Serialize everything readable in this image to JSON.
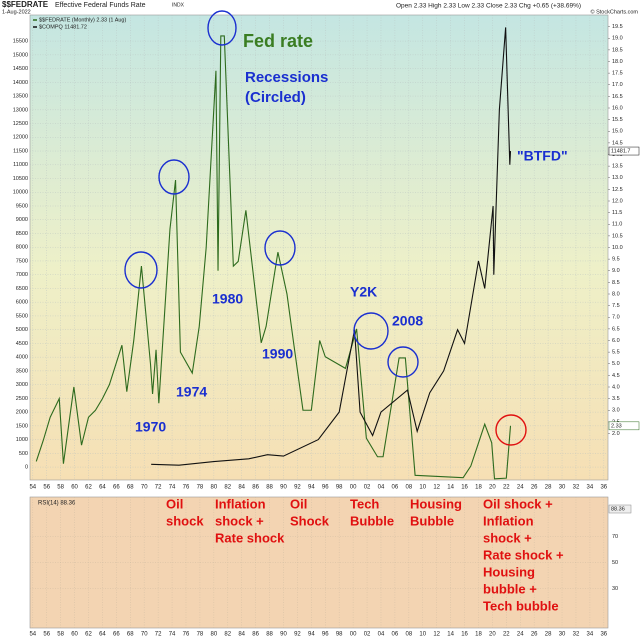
{
  "chart_data": {
    "type": "line",
    "title": "$$FEDRATE",
    "subtitle": "Effective Federal Funds Rate",
    "exchange": "INDX",
    "date": "1-Aug-2022",
    "quote": "Open 2.33  High 2.33  Low 2.33  Close 2.33  Chg +0.65 (+38.69%)",
    "credit": "© StockCharts.com",
    "xlim": [
      1953.6,
      2036.6
    ],
    "xticks": [
      {
        "value": 1954,
        "label": "54"
      },
      {
        "value": 1956,
        "label": "56"
      },
      {
        "value": 1958,
        "label": "58"
      },
      {
        "value": 1960,
        "label": "60"
      },
      {
        "value": 1962,
        "label": "62"
      },
      {
        "value": 1964,
        "label": "64"
      },
      {
        "value": 1966,
        "label": "66"
      },
      {
        "value": 1968,
        "label": "68"
      },
      {
        "value": 1970,
        "label": "70"
      },
      {
        "value": 1972,
        "label": "72"
      },
      {
        "value": 1974,
        "label": "74"
      },
      {
        "value": 1976,
        "label": "76"
      },
      {
        "value": 1978,
        "label": "78"
      },
      {
        "value": 1980,
        "label": "80"
      },
      {
        "value": 1982,
        "label": "82"
      },
      {
        "value": 1984,
        "label": "84"
      },
      {
        "value": 1986,
        "label": "86"
      },
      {
        "value": 1988,
        "label": "88"
      },
      {
        "value": 1990,
        "label": "90"
      },
      {
        "value": 1992,
        "label": "92"
      },
      {
        "value": 1994,
        "label": "94"
      },
      {
        "value": 1996,
        "label": "96"
      },
      {
        "value": 1998,
        "label": "98"
      },
      {
        "value": 2000,
        "label": "00"
      },
      {
        "value": 2002,
        "label": "02"
      },
      {
        "value": 2004,
        "label": "04"
      },
      {
        "value": 2006,
        "label": "06"
      },
      {
        "value": 2008,
        "label": "08"
      },
      {
        "value": 2010,
        "label": "10"
      },
      {
        "value": 2012,
        "label": "12"
      },
      {
        "value": 2014,
        "label": "14"
      },
      {
        "value": 2016,
        "label": "16"
      },
      {
        "value": 2018,
        "label": "18"
      },
      {
        "value": 2020,
        "label": "20"
      },
      {
        "value": 2022,
        "label": "22"
      },
      {
        "value": 2024,
        "label": "24"
      },
      {
        "value": 2026,
        "label": "26"
      },
      {
        "value": 2028,
        "label": "28"
      },
      {
        "value": 2030,
        "label": "30"
      },
      {
        "value": 2032,
        "label": "32"
      },
      {
        "value": 2034,
        "label": "34"
      },
      {
        "value": 2036,
        "label": "36"
      }
    ],
    "ylim": [
      -470,
      16450
    ],
    "yticks": [
      0,
      500,
      1000,
      1500,
      2000,
      2500,
      3000,
      3500,
      4000,
      4500,
      5000,
      5500,
      6000,
      6500,
      7000,
      7500,
      8000,
      8500,
      9000,
      9500,
      10000,
      10500,
      11000,
      11500,
      12000,
      12500,
      13000,
      13500,
      14000,
      14500,
      15000,
      15500
    ],
    "y2lim": [
      0,
      20
    ],
    "y2ticks": [
      {
        "value": 2,
        "label": "2.0"
      },
      2.5,
      {
        "value": 3,
        "label": "3.0"
      },
      3.5,
      {
        "value": 4,
        "label": "4.0"
      },
      4.5,
      {
        "value": 5,
        "label": "5.0"
      },
      5.5,
      {
        "value": 6,
        "label": "6.0"
      },
      6.5,
      {
        "value": 7,
        "label": "7.0"
      },
      7.5,
      {
        "value": 8,
        "label": "8.0"
      },
      8.5,
      {
        "value": 9,
        "label": "9.0"
      },
      9.5,
      {
        "value": 10,
        "label": "10.0"
      },
      10.5,
      {
        "value": 11,
        "label": "11.0"
      },
      11.5,
      {
        "value": 12,
        "label": "12.0"
      },
      12.5,
      {
        "value": 13,
        "label": "13.0"
      },
      13.5,
      {
        "value": 14,
        "label": "14.0"
      },
      14.5,
      {
        "value": 15,
        "label": "15.0"
      },
      15.5,
      {
        "value": 16,
        "label": "16.0"
      },
      16.5,
      {
        "value": 17,
        "label": "17.0"
      },
      17.5,
      {
        "value": 18,
        "label": "18.0"
      },
      18.5,
      {
        "value": 19,
        "label": "19.0"
      },
      19.5
    ],
    "grid": true,
    "series": [
      {
        "name": "$$FEDRATE (Monthly) 2.33 (1 Aug)",
        "color": "#2e6b1e",
        "axis": "y2",
        "last_label": "2.33",
        "x": [
          1954.5,
          1955.5,
          1956.5,
          1957.8,
          1958.4,
          1959.9,
          1961.0,
          1962.0,
          1963.0,
          1964.0,
          1965.0,
          1966.8,
          1967.5,
          1968.5,
          1969.6,
          1970.9,
          1971.2,
          1971.7,
          1972.1,
          1973.7,
          1974.5,
          1975.2,
          1976.9,
          1977.9,
          1978.9,
          1980.3,
          1980.6,
          1981.0,
          1981.5,
          1982.8,
          1983.5,
          1984.6,
          1986.8,
          1987.5,
          1989.2,
          1990.5,
          1991.5,
          1992.8,
          1994.0,
          1995.2,
          1996.0,
          1998.9,
          2000.5,
          2001.9,
          2003.5,
          2004.3,
          2006.6,
          2007.5,
          2008.9,
          2015.8,
          2016.9,
          2018.9,
          2019.9,
          2020.3,
          2022.0,
          2022.6
        ],
        "values": [
          0.8,
          1.7,
          2.7,
          3.5,
          0.7,
          4.0,
          1.5,
          2.7,
          3.0,
          3.5,
          4.1,
          5.8,
          3.8,
          6.0,
          9.2,
          5.0,
          3.7,
          5.6,
          3.3,
          10.8,
          12.9,
          5.5,
          4.6,
          6.6,
          10.0,
          17.6,
          9.0,
          19.1,
          19.1,
          9.2,
          9.4,
          11.6,
          5.9,
          6.6,
          9.8,
          8.0,
          5.8,
          3.0,
          3.0,
          6.0,
          5.3,
          4.8,
          6.5,
          1.8,
          1.0,
          1.0,
          5.25,
          5.25,
          0.2,
          0.1,
          0.6,
          2.4,
          1.6,
          0.05,
          0.08,
          2.33
        ]
      },
      {
        "name": "$COMPQ 11481.72",
        "color": "#111111",
        "last_label": "11481.7",
        "x": [
          1971.0,
          1975.0,
          1980.0,
          1985.0,
          1987.7,
          1990.0,
          1995.0,
          1998.0,
          2000.2,
          2001.0,
          2002.8,
          2004.0,
          2007.8,
          2009.2,
          2011.0,
          2013.0,
          2015.0,
          2016.0,
          2018.0,
          2018.9,
          2020.1,
          2020.2,
          2021.0,
          2021.9,
          2022.5,
          2022.6
        ],
        "values": [
          100,
          70,
          200,
          300,
          450,
          400,
          1000,
          2000,
          5000,
          2000,
          1150,
          2000,
          2800,
          1300,
          2700,
          3500,
          5000,
          4500,
          7500,
          6500,
          9500,
          7000,
          13000,
          16000,
          11000,
          11500
        ]
      }
    ],
    "annotations": [
      {
        "lines": [
          "Fed rate"
        ],
        "color": "#3a7d22"
      },
      {
        "lines": [
          "Recessions",
          "(Circled)"
        ],
        "color": "#1a2fd0"
      },
      {
        "lines": [
          "1970"
        ],
        "color": "#1a2fd0"
      },
      {
        "lines": [
          "1974"
        ],
        "color": "#1a2fd0"
      },
      {
        "lines": [
          "1980"
        ],
        "color": "#1a2fd0"
      },
      {
        "lines": [
          "1990"
        ],
        "color": "#1a2fd0"
      },
      {
        "lines": [
          "Y2K"
        ],
        "color": "#1a2fd0"
      },
      {
        "lines": [
          "2008"
        ],
        "color": "#1a2fd0"
      },
      {
        "lines": [
          "\"BTFD\""
        ],
        "color": "#1a2fd0"
      },
      {
        "lines": [
          "Oil",
          "shock"
        ],
        "color": "#e01010"
      },
      {
        "lines": [
          "Inflation",
          "shock +",
          "Rate shock"
        ],
        "color": "#e01010"
      },
      {
        "lines": [
          "Oil",
          "Shock"
        ],
        "color": "#e01010"
      },
      {
        "lines": [
          "Tech",
          "Bubble"
        ],
        "color": "#e01010"
      },
      {
        "lines": [
          "Housing",
          "Bubble"
        ],
        "color": "#e01010"
      },
      {
        "lines": [
          "Oil shock +",
          "Inflation",
          "shock +",
          "Rate shock +",
          "Housing",
          "bubble +",
          "Tech bubble"
        ],
        "color": "#e01010"
      }
    ],
    "rsi": {
      "label": "RSI(14) 88.36",
      "last_label": "88.36",
      "ylim": [
        0,
        100
      ],
      "yticks": [
        30,
        50,
        70
      ]
    }
  }
}
